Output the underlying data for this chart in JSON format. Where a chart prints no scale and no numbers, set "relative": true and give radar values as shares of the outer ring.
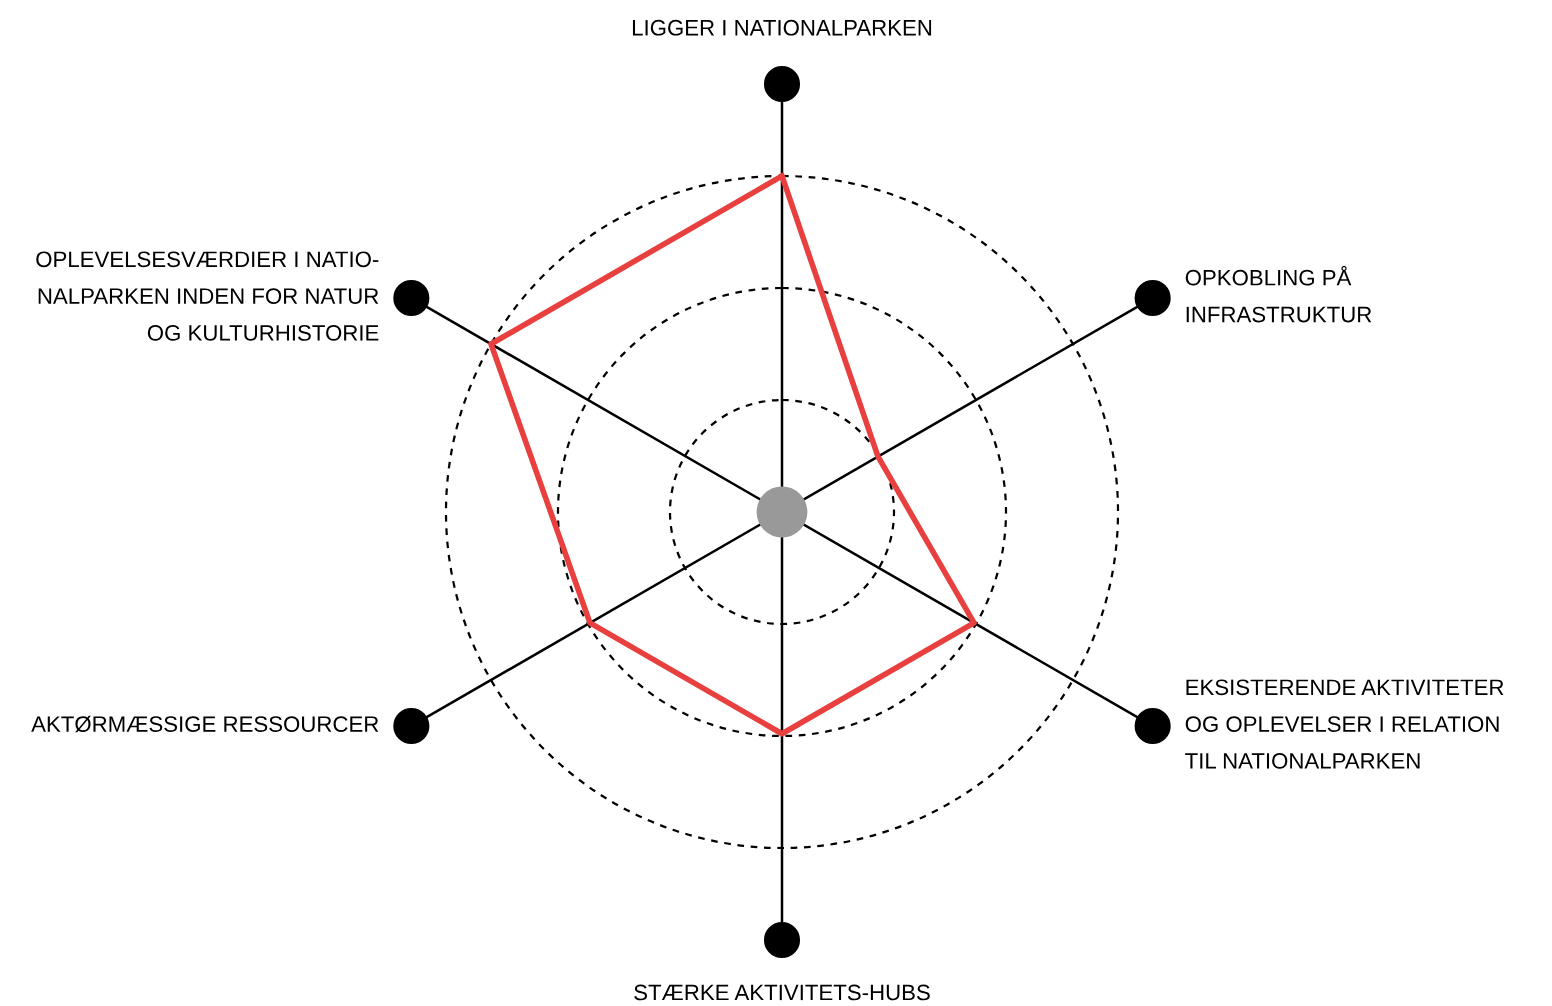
{
  "chart_data": {
    "type": "radar",
    "relative": true,
    "grid": true,
    "line_style": "solid",
    "marker": "none",
    "categories": [
      "LIGGER I NATIONALPARKEN",
      "OPKOBLING PÅ\nINFRASTRUKTUR",
      "EKSISTERENDE AKTIVITETER\nOG OPLEVELSER I RELATION\nTIL NATIONALPARKEN",
      "STÆRKE AKTIVITETS-HUBS",
      "AKTØRMÆSSIGE RESSOURCER",
      "OPLEVELSESVÆRDIER I NATIO-\nNALPARKEN INDEN FOR NATUR\nOG KULTURHISTORIE"
    ],
    "series": [
      {
        "color": "#e8403f",
        "values": [
          1.0,
          0.33,
          0.66,
          0.66,
          0.66,
          1.0
        ]
      }
    ]
  }
}
